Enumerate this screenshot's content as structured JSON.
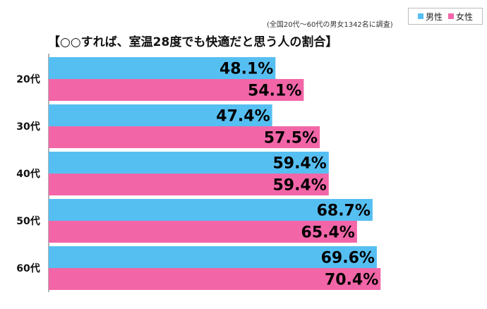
{
  "note": "(全国20代～60代の男女1342名に調査)",
  "chart_data": {
    "type": "bar",
    "orientation": "horizontal",
    "title": "【○○すれば、室温28度でも快適だと思う人の割合】",
    "categories": [
      "20代",
      "30代",
      "40代",
      "50代",
      "60代"
    ],
    "series": [
      {
        "name": "男性",
        "color": "#56bff2",
        "values": [
          48.1,
          47.4,
          59.4,
          68.7,
          69.6
        ]
      },
      {
        "name": "女性",
        "color": "#f266a8",
        "values": [
          54.1,
          57.5,
          59.4,
          65.4,
          70.4
        ]
      }
    ],
    "value_suffix": "%",
    "xlim": [
      0,
      100
    ],
    "legend_position": "top-right"
  }
}
